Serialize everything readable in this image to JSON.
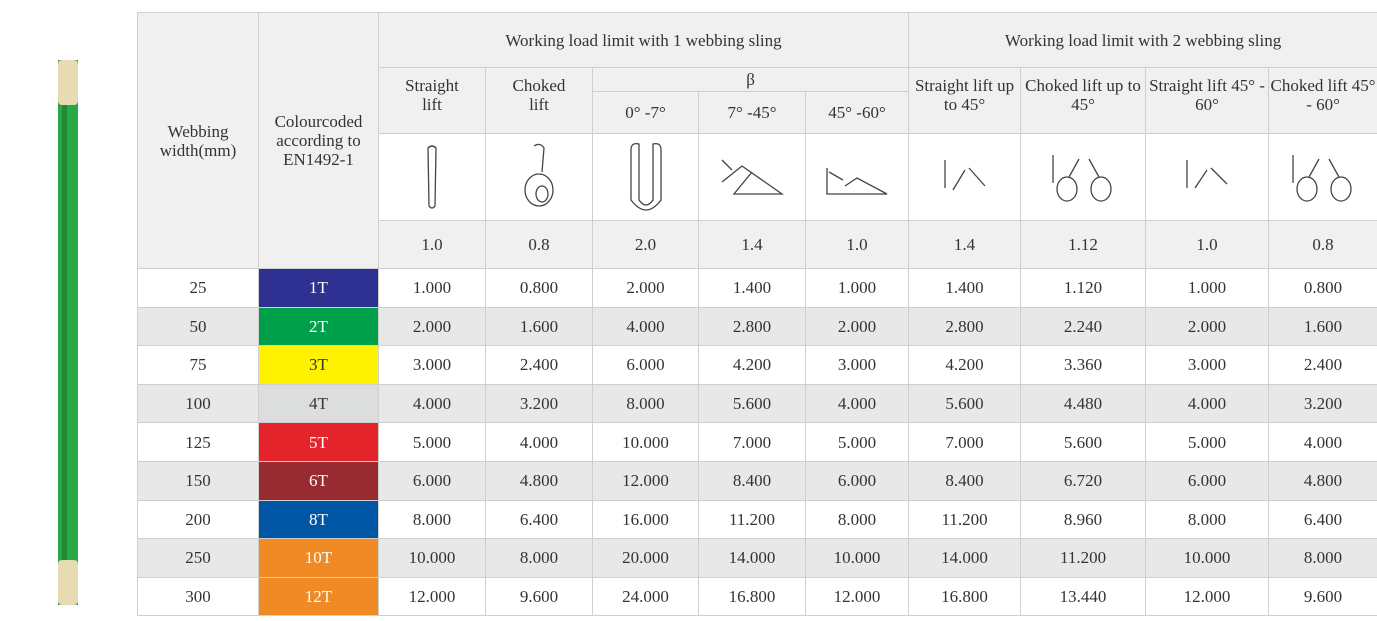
{
  "header": {
    "webbing": "Webbing width(mm)",
    "colour": "Colourcoded according to EN1492-1",
    "group1": "Working load limit with 1 webbing sling",
    "group2": "Working load limit with 2 webbing sling",
    "beta": "β",
    "columns": [
      "Straight lift",
      "Choked lift",
      "0° -7°",
      "7° -45°",
      "45° -60°",
      "Straight lift up to 45°",
      "Choked lift up to 45°",
      "Straight lift 45° - 60°",
      "Choked lift 45° - 60°"
    ],
    "factors": [
      "1.0",
      "0.8",
      "2.0",
      "1.4",
      "1.0",
      "1.4",
      "1.12",
      "1.0",
      "0.8"
    ]
  },
  "rows": [
    {
      "width": "25",
      "code": "1T",
      "color": "#2e3192",
      "values": [
        "1.000",
        "0.800",
        "2.000",
        "1.400",
        "1.000",
        "1.400",
        "1.120",
        "1.000",
        "0.800"
      ]
    },
    {
      "width": "50",
      "code": "2T",
      "color": "#00a04a",
      "values": [
        "2.000",
        "1.600",
        "4.000",
        "2.800",
        "2.000",
        "2.800",
        "2.240",
        "2.000",
        "1.600"
      ]
    },
    {
      "width": "75",
      "code": "3T",
      "color": "#fff200",
      "values": [
        "3.000",
        "2.400",
        "6.000",
        "4.200",
        "3.000",
        "4.200",
        "3.360",
        "3.000",
        "2.400"
      ]
    },
    {
      "width": "100",
      "code": "4T",
      "color": "#dcdddd",
      "values": [
        "4.000",
        "3.200",
        "8.000",
        "5.600",
        "4.000",
        "5.600",
        "4.480",
        "4.000",
        "3.200"
      ]
    },
    {
      "width": "125",
      "code": "5T",
      "color": "#e3242b",
      "values": [
        "5.000",
        "4.000",
        "10.000",
        "7.000",
        "5.000",
        "7.000",
        "5.600",
        "5.000",
        "4.000"
      ]
    },
    {
      "width": "150",
      "code": "6T",
      "color": "#982a31",
      "values": [
        "6.000",
        "4.800",
        "12.000",
        "8.400",
        "6.000",
        "8.400",
        "6.720",
        "6.000",
        "4.800"
      ]
    },
    {
      "width": "200",
      "code": "8T",
      "color": "#0055a5",
      "values": [
        "8.000",
        "6.400",
        "16.000",
        "11.200",
        "8.000",
        "11.200",
        "8.960",
        "8.000",
        "6.400"
      ]
    },
    {
      "width": "250",
      "code": "10T",
      "color": "#f08a24",
      "values": [
        "10.000",
        "8.000",
        "20.000",
        "14.000",
        "10.000",
        "14.000",
        "11.200",
        "10.000",
        "8.000"
      ]
    },
    {
      "width": "300",
      "code": "12T",
      "color": "#f08a24",
      "values": [
        "12.000",
        "9.600",
        "24.000",
        "16.800",
        "12.000",
        "16.800",
        "13.440",
        "12.000",
        "9.600"
      ]
    }
  ]
}
